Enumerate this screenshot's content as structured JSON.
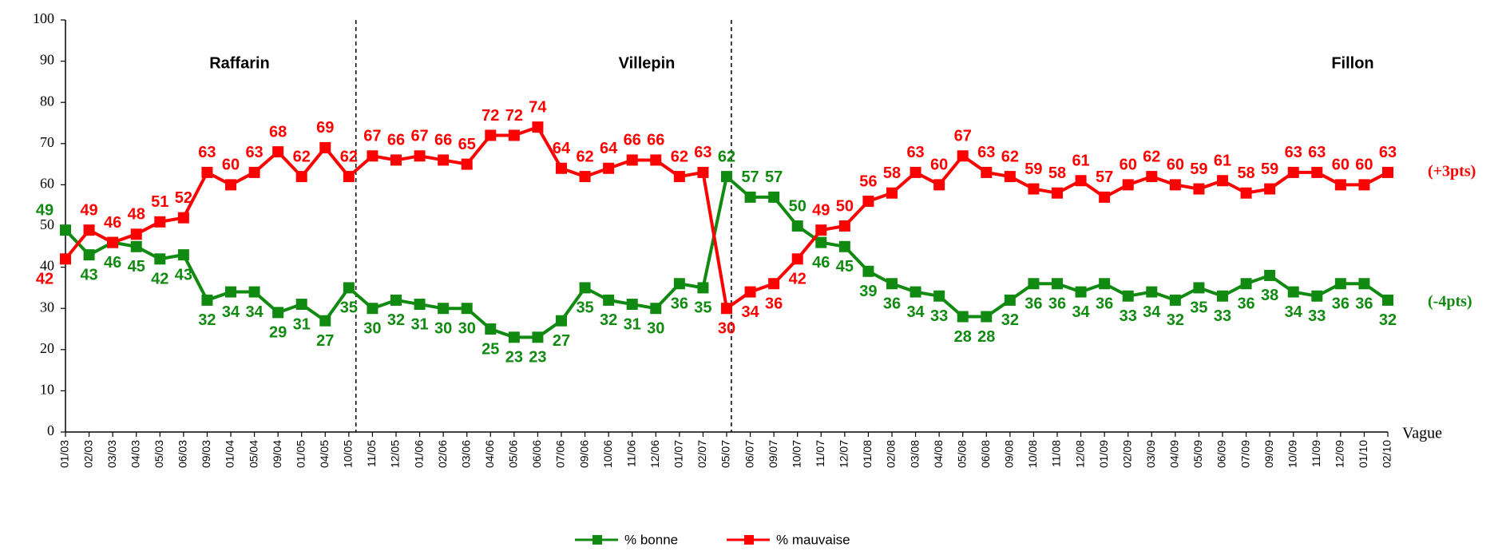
{
  "chart_data": {
    "type": "line",
    "categories": [
      "01/03",
      "02/03",
      "03/03",
      "04/03",
      "05/03",
      "06/03",
      "09/03",
      "01/04",
      "05/04",
      "09/04",
      "01/05",
      "04/05",
      "10/05",
      "11/05",
      "12/05",
      "01/06",
      "02/06",
      "03/06",
      "04/06",
      "05/06",
      "06/06",
      "07/06",
      "09/06",
      "10/06",
      "11/06",
      "12/06",
      "01/07",
      "02/07",
      "05/07",
      "06/07",
      "09/07",
      "10/07",
      "11/07",
      "12/07",
      "01/08",
      "02/08",
      "03/08",
      "04/08",
      "05/08",
      "06/08",
      "09/08",
      "10/08",
      "11/08",
      "12/08",
      "01/09",
      "02/09",
      "03/09",
      "04/09",
      "05/09",
      "06/09",
      "07/09",
      "09/09",
      "10/09",
      "11/09",
      "12/09",
      "01/10",
      "02/10"
    ],
    "series": [
      {
        "name": "% bonne",
        "color": "#118a11",
        "values": [
          49,
          43,
          46,
          45,
          42,
          43,
          32,
          34,
          34,
          29,
          31,
          27,
          35,
          30,
          32,
          31,
          30,
          30,
          25,
          23,
          23,
          27,
          35,
          32,
          31,
          30,
          36,
          35,
          62,
          57,
          57,
          50,
          46,
          45,
          39,
          36,
          34,
          33,
          28,
          28,
          32,
          36,
          36,
          34,
          36,
          33,
          34,
          32,
          35,
          33,
          36,
          38,
          34,
          33,
          36,
          36,
          32
        ]
      },
      {
        "name": "% mauvaise",
        "color": "#ff0000",
        "values": [
          42,
          49,
          46,
          48,
          51,
          52,
          63,
          60,
          63,
          68,
          62,
          69,
          62,
          67,
          66,
          67,
          66,
          65,
          72,
          72,
          74,
          64,
          62,
          64,
          66,
          66,
          62,
          63,
          30,
          34,
          36,
          42,
          49,
          50,
          56,
          58,
          63,
          60,
          67,
          63,
          62,
          59,
          58,
          61,
          57,
          60,
          62,
          60,
          59,
          61,
          58,
          59,
          63,
          63,
          60,
          60,
          63
        ]
      }
    ],
    "ylim": [
      0,
      100
    ],
    "yticks": [
      0,
      10,
      20,
      30,
      40,
      50,
      60,
      70,
      80,
      90,
      100
    ],
    "x_label": "Vague",
    "periods": [
      "Raffarin",
      "Villepin",
      "Fillon"
    ],
    "end_notes": [
      "(-4pts)",
      "(+3pts)"
    ],
    "legend": "bottom"
  }
}
